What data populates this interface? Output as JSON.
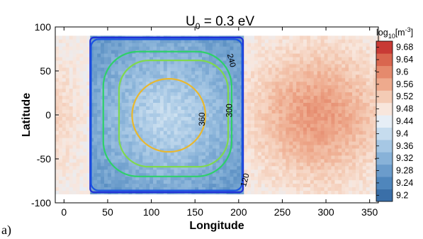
{
  "panel_label": "a)",
  "chart_data": {
    "type": "heatmap",
    "title_main": "U",
    "title_sub": "0",
    "title_rest": " = 0.3 eV",
    "xlabel": "Longitude",
    "ylabel": "Latitude",
    "xlim": [
      -10,
      360
    ],
    "ylim": [
      -100,
      100
    ],
    "xticks": [
      0,
      50,
      100,
      150,
      200,
      250,
      300,
      350
    ],
    "yticks": [
      -100,
      -50,
      0,
      50,
      100
    ],
    "grid": false,
    "colorbar": {
      "label_base": "log",
      "label_sub": "10",
      "label_bracket_open": "[m",
      "label_sup": "-3",
      "label_bracket_close": "]",
      "levels": [
        9.2,
        9.24,
        9.28,
        9.32,
        9.36,
        9.4,
        9.44,
        9.48,
        9.52,
        9.56,
        9.6,
        9.64,
        9.68
      ],
      "tick_labels": [
        "9.2",
        "9.24",
        "9.28",
        "9.32",
        "9.36",
        "9.4",
        "9.44",
        "9.48",
        "9.52",
        "9.56",
        "9.6",
        "9.64",
        "9.68"
      ],
      "colors": [
        "#3a6fa8",
        "#4f86bc",
        "#6b9ccb",
        "#88b2d8",
        "#a6c7e4",
        "#c6dcee",
        "#e6eef6",
        "#f8e6dc",
        "#f4cbb5",
        "#eeaa8d",
        "#e58a6d",
        "#d9664f",
        "#c83a35"
      ],
      "placement": "right"
    },
    "field": {
      "lon_range": [
        -10,
        360
      ],
      "lat_range": [
        -90,
        90
      ],
      "density_outside_box": 9.48,
      "density_box_edge": 9.3,
      "density_box_center": 9.42,
      "density_hotspot": 9.6,
      "hotspot_center_lon": 290,
      "hotspot_center_lat": 0
    },
    "region_box": {
      "lon": [
        30,
        205
      ],
      "lat": [
        -88,
        88
      ],
      "color": "#1f2fd6"
    },
    "contours": [
      {
        "level": "120",
        "color": "#1b55e0",
        "lon": [
          31,
          204
        ],
        "lat": [
          -86,
          86
        ],
        "label_lon": 207,
        "label_lat": -74,
        "label_rotate": -75
      },
      {
        "level": "240",
        "color": "#2fd06a",
        "lon": [
          45,
          192
        ],
        "lat": [
          -70,
          72
        ],
        "label_lon": 192,
        "label_lat": 62,
        "label_rotate": 75
      },
      {
        "level": "300",
        "color": "#7fd94e",
        "lon": [
          63,
          188
        ],
        "lat": [
          -59,
          62
        ],
        "label_lon": 189,
        "label_lat": 5,
        "label_rotate": -90
      },
      {
        "level": "360",
        "color": "#e8b830",
        "lon": [
          78,
          162
        ],
        "lat": [
          -42,
          41
        ],
        "label_lon": 158,
        "label_lat": -5,
        "label_rotate": -90
      }
    ]
  }
}
